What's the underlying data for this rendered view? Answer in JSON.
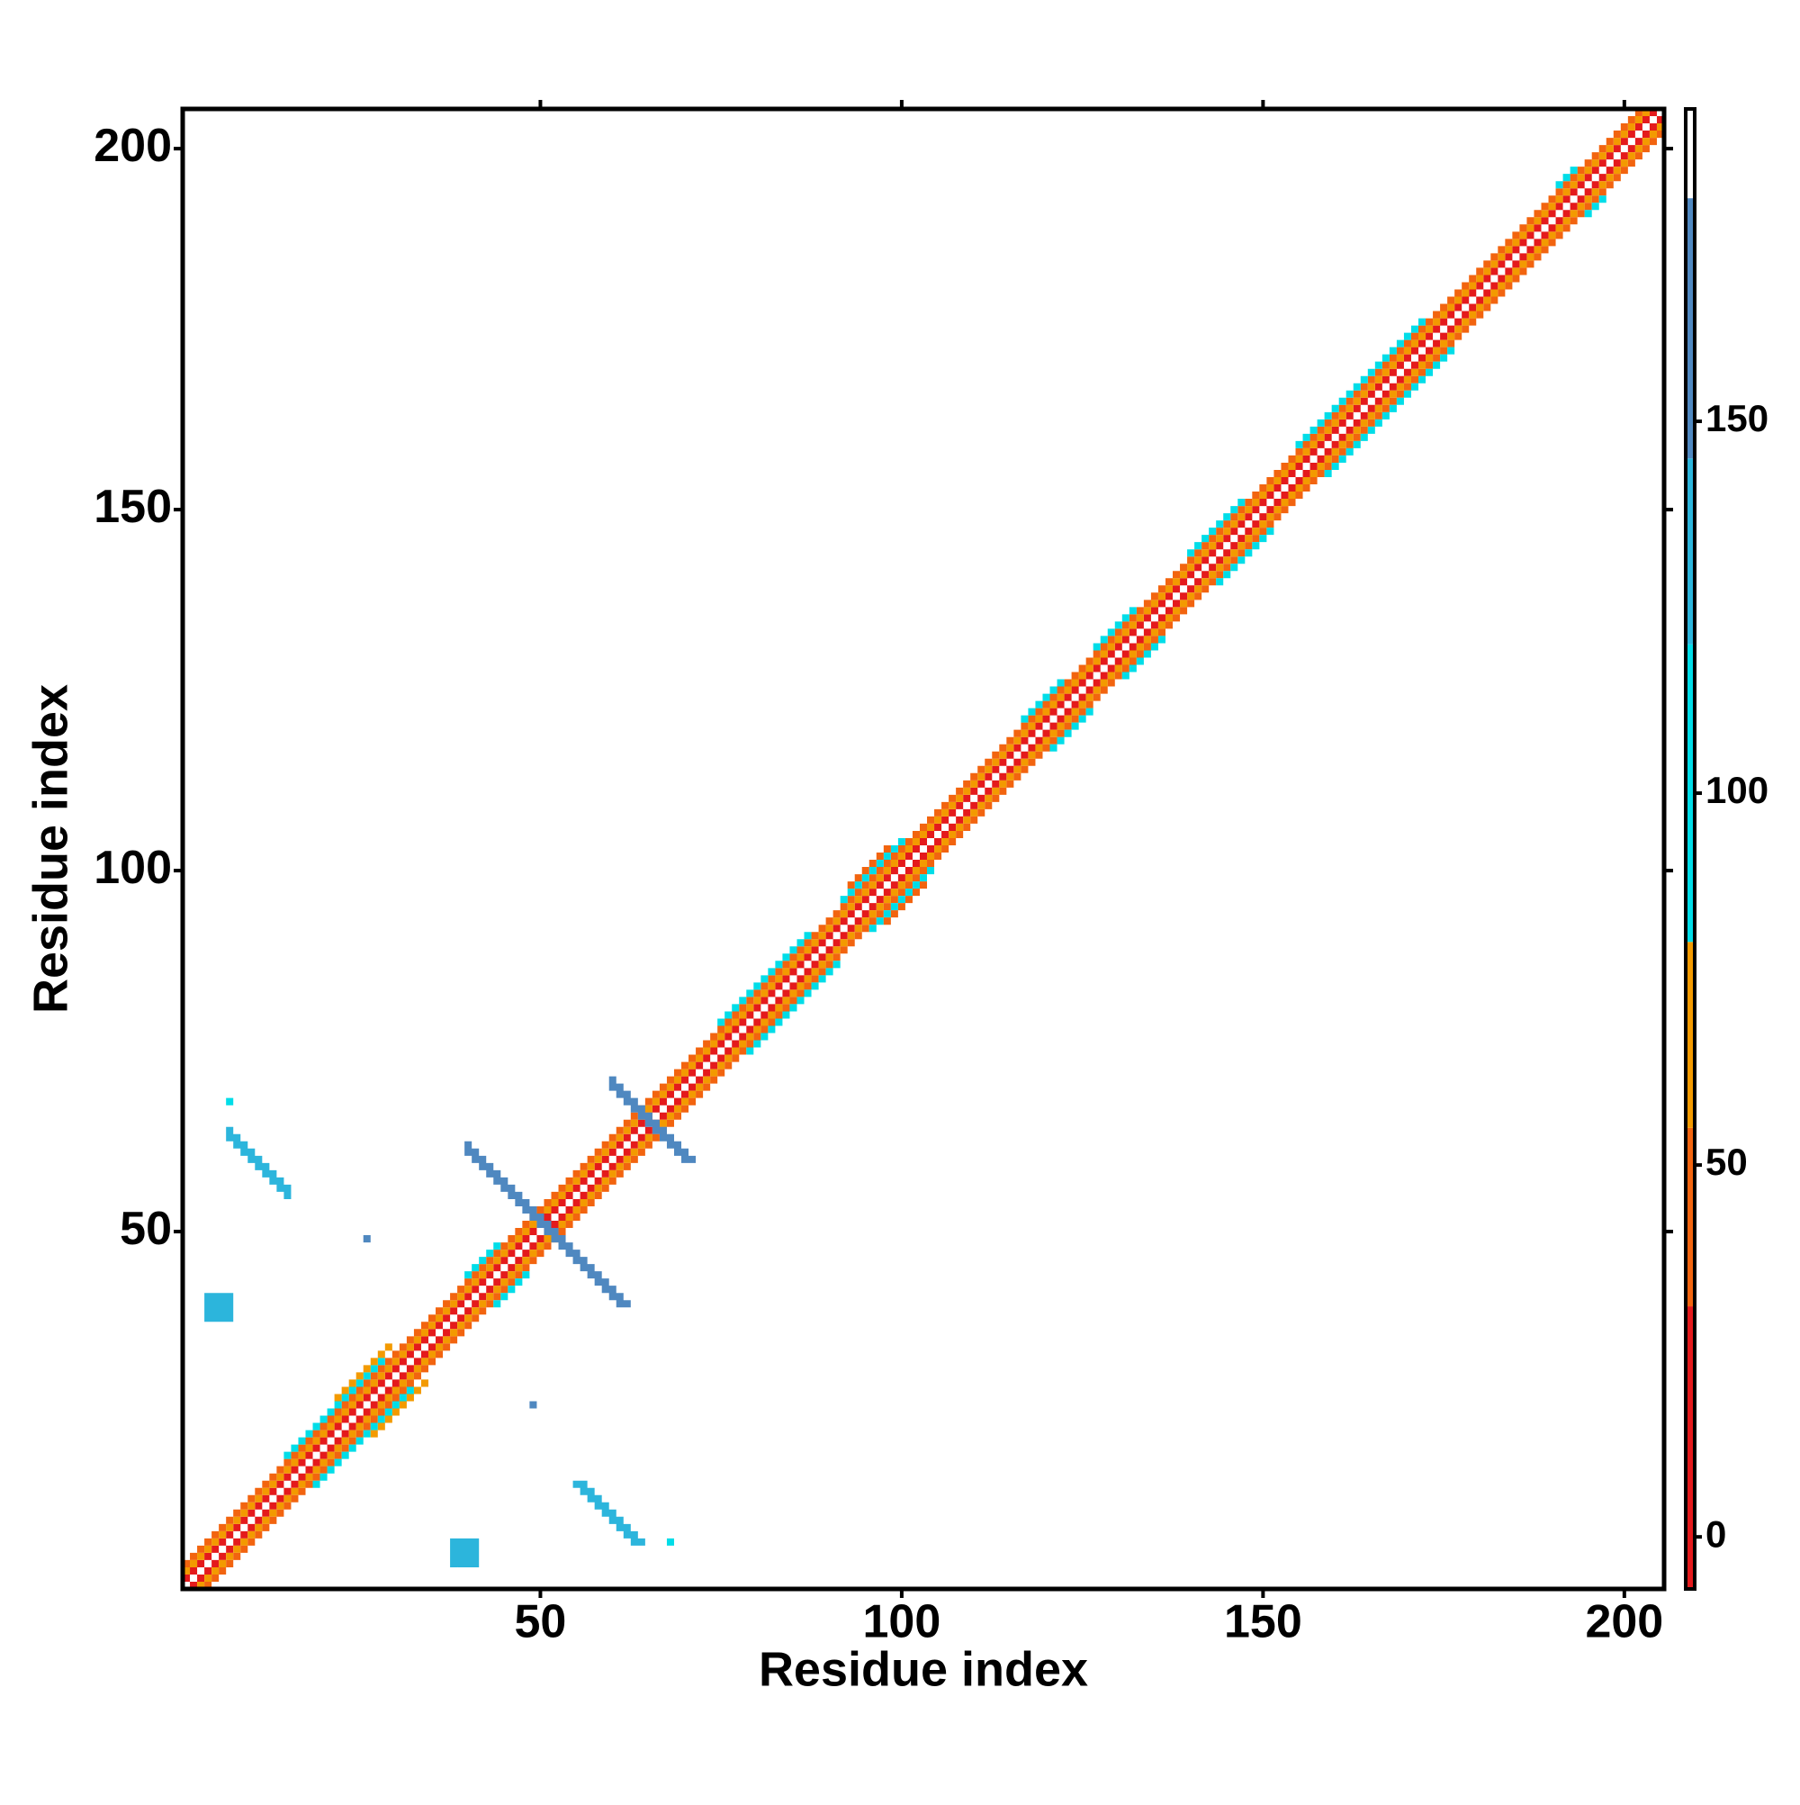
{
  "chart_data": {
    "type": "heatmap",
    "xlabel": "Residue index",
    "ylabel": "Residue index",
    "xlim": [
      0.5,
      205.5
    ],
    "ylim": [
      0.5,
      205.5
    ],
    "xticks": [
      50,
      100,
      150,
      200
    ],
    "yticks": [
      50,
      100,
      150,
      200
    ],
    "symmetric": true,
    "diagonal_bands": [
      {
        "from": 1,
        "to": 205,
        "offset": 1,
        "value": 20
      },
      {
        "from": 1,
        "to": 205,
        "offset": 2,
        "value": 60
      },
      {
        "from": 1,
        "to": 205,
        "offset": 3,
        "value": 45
      },
      {
        "from": 15,
        "to": 32,
        "offset": 4,
        "value": 100
      },
      {
        "from": 22,
        "to": 34,
        "offset": 5,
        "value": 70
      },
      {
        "from": 40,
        "to": 48,
        "offset": 4,
        "value": 100
      },
      {
        "from": 75,
        "to": 91,
        "offset": 4,
        "value": 100
      },
      {
        "from": 92,
        "to": 104,
        "offset": 4,
        "value": 100
      },
      {
        "from": 93,
        "to": 103,
        "offset": 5,
        "value": 40
      },
      {
        "from": 117,
        "to": 126,
        "offset": 4,
        "value": 100
      },
      {
        "from": 127,
        "to": 136,
        "offset": 4,
        "value": 100
      },
      {
        "from": 140,
        "to": 151,
        "offset": 4,
        "value": 100
      },
      {
        "from": 155,
        "to": 176,
        "offset": 4,
        "value": 100
      },
      {
        "from": 191,
        "to": 197,
        "offset": 4,
        "value": 100
      }
    ],
    "antidiagonal_bands": [
      {
        "from": 40,
        "to": 61,
        "sum": 101,
        "value": 150
      },
      {
        "from": 60,
        "to": 70,
        "sum": 130,
        "value": 150
      },
      {
        "from": 7,
        "to": 15,
        "sum": 70,
        "value": 130
      }
    ],
    "patches": [
      {
        "x": [
          4,
          7
        ],
        "y": [
          38,
          41
        ],
        "value": 140
      },
      {
        "x": [
          26,
          26
        ],
        "y": [
          49,
          49
        ],
        "value": 160
      },
      {
        "x": [
          7,
          7
        ],
        "y": [
          68,
          68
        ],
        "value": 100
      }
    ],
    "colorbar": {
      "lim": [
        -7,
        192
      ],
      "ticks": [
        0,
        50,
        100,
        150
      ],
      "bins": [
        -7,
        31,
        55,
        80,
        120,
        145,
        180,
        192
      ],
      "colors": [
        "#e41a1c",
        "#f2640f",
        "#f39a00",
        "#00dde8",
        "#2cb5dc",
        "#4f88c0",
        "#ffffff"
      ]
    }
  }
}
